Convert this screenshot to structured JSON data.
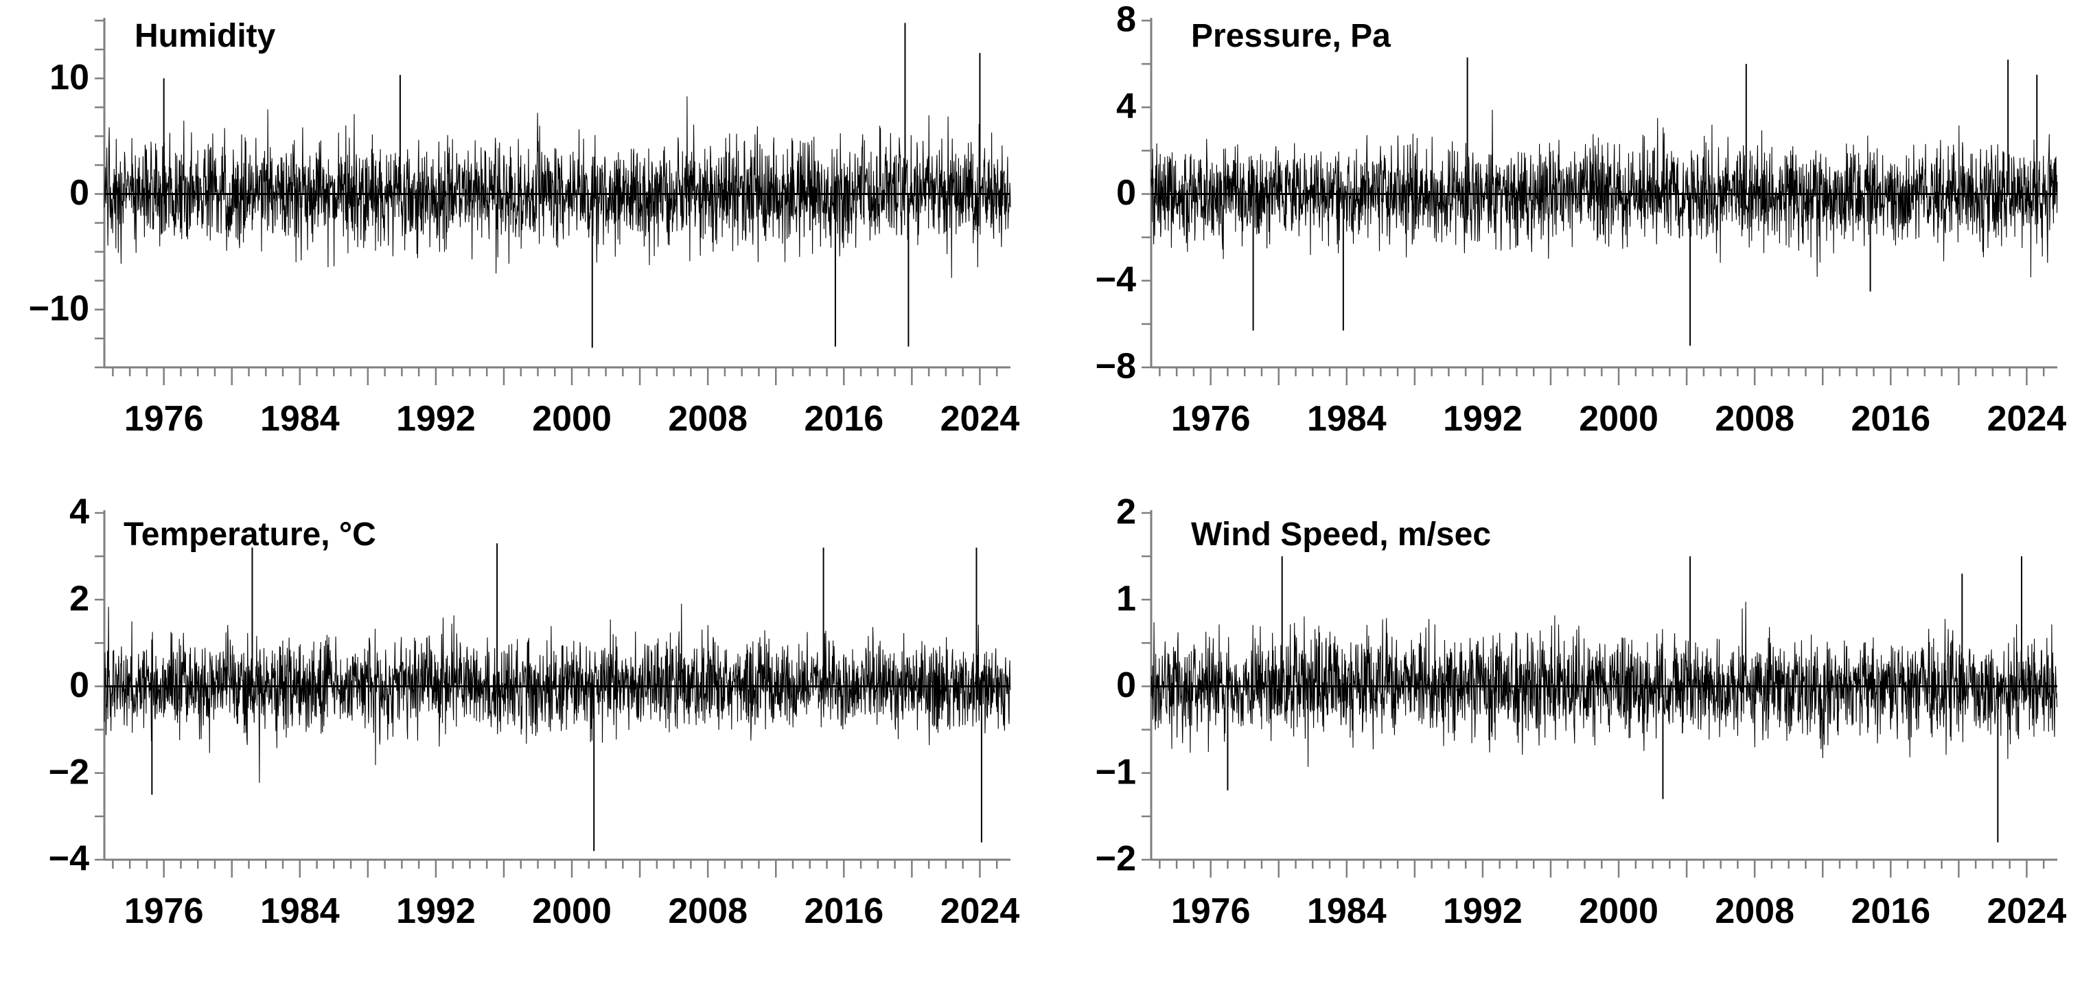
{
  "chart_data": [
    {
      "type": "line",
      "title": "Humidity",
      "x_range": [
        1972.5,
        2025.8
      ],
      "ylim": [
        -15,
        15
      ],
      "xticks": [
        1976,
        1984,
        1992,
        2000,
        2008,
        2016,
        2024
      ],
      "xtick_labels": [
        "1976",
        "1984",
        "1992",
        "2000",
        "2008",
        "2016",
        "2024"
      ],
      "yticks": [
        10,
        0,
        -10
      ],
      "ytick_labels": [
        "10",
        "0",
        "−10"
      ],
      "minor_yticks": [
        -15,
        -12.5,
        -10,
        -7.5,
        -5,
        -2.5,
        0,
        2.5,
        5,
        7.5,
        10,
        12.5,
        15
      ],
      "typical_range": [
        -6,
        6
      ],
      "series": [
        {
          "x": [
            1976.0,
            1989.9,
            2001.2,
            2015.5,
            2019.6,
            2019.8,
            2024.0
          ],
          "values": [
            10.0,
            10.3,
            -13.3,
            -13.2,
            14.8,
            -13.2,
            12.2
          ]
        }
      ]
    },
    {
      "type": "line",
      "title": "Pressure, Pa",
      "x_range": [
        1972.5,
        2025.8
      ],
      "ylim": [
        -8,
        8
      ],
      "xticks": [
        1976,
        1984,
        1992,
        2000,
        2008,
        2016,
        2024
      ],
      "xtick_labels": [
        "1976",
        "1984",
        "1992",
        "2000",
        "2008",
        "2016",
        "2024"
      ],
      "yticks": [
        8,
        4,
        0,
        -4,
        -8
      ],
      "ytick_labels": [
        "8",
        "4",
        "0",
        "−4",
        "−8"
      ],
      "minor_yticks": [
        -8,
        -6,
        -4,
        -2,
        0,
        2,
        4,
        6,
        8
      ],
      "typical_range": [
        -3,
        3
      ],
      "series": [
        {
          "x": [
            1978.5,
            1983.8,
            1991.1,
            2004.2,
            2007.5,
            2014.8,
            2022.9,
            2024.6
          ],
          "values": [
            -6.3,
            -6.3,
            6.3,
            -7.0,
            6.0,
            -4.5,
            6.2,
            5.5
          ]
        }
      ]
    },
    {
      "type": "line",
      "title": "Temperature, °C",
      "x_range": [
        1972.5,
        2025.8
      ],
      "ylim": [
        -4,
        4
      ],
      "xticks": [
        1976,
        1984,
        1992,
        2000,
        2008,
        2016,
        2024
      ],
      "xtick_labels": [
        "1976",
        "1984",
        "1992",
        "2000",
        "2008",
        "2016",
        "2024"
      ],
      "yticks": [
        4,
        2,
        0,
        -2,
        -4
      ],
      "ytick_labels": [
        "4",
        "2",
        "0",
        "−2",
        "−4"
      ],
      "minor_yticks": [
        -4,
        -3,
        -2,
        -1,
        0,
        1,
        2,
        3,
        4
      ],
      "typical_range": [
        -1.4,
        1.4
      ],
      "series": [
        {
          "x": [
            1975.3,
            1981.2,
            1995.6,
            2001.3,
            2014.8,
            2023.8,
            2024.1
          ],
          "values": [
            -2.5,
            3.2,
            3.3,
            -3.8,
            3.2,
            3.2,
            -3.6
          ]
        }
      ]
    },
    {
      "type": "line",
      "title": "Wind Speed, m/sec",
      "x_range": [
        1972.5,
        2025.8
      ],
      "ylim": [
        -2,
        2
      ],
      "xticks": [
        1976,
        1984,
        1992,
        2000,
        2008,
        2016,
        2024
      ],
      "xtick_labels": [
        "1976",
        "1984",
        "1992",
        "2000",
        "2008",
        "2016",
        "2024"
      ],
      "yticks": [
        2,
        1,
        0,
        -1,
        -2
      ],
      "ytick_labels": [
        "2",
        "1",
        "0",
        "−1",
        "−2"
      ],
      "minor_yticks": [
        -2,
        -1.5,
        -1,
        -0.5,
        0,
        0.5,
        1,
        1.5,
        2
      ],
      "typical_range": [
        -0.75,
        0.75
      ],
      "series": [
        {
          "x": [
            1977.0,
            1980.2,
            2002.6,
            2004.2,
            2020.2,
            2022.3,
            2023.7
          ],
          "values": [
            -1.2,
            1.5,
            -1.3,
            1.5,
            1.3,
            -1.8,
            1.5
          ]
        }
      ]
    }
  ]
}
